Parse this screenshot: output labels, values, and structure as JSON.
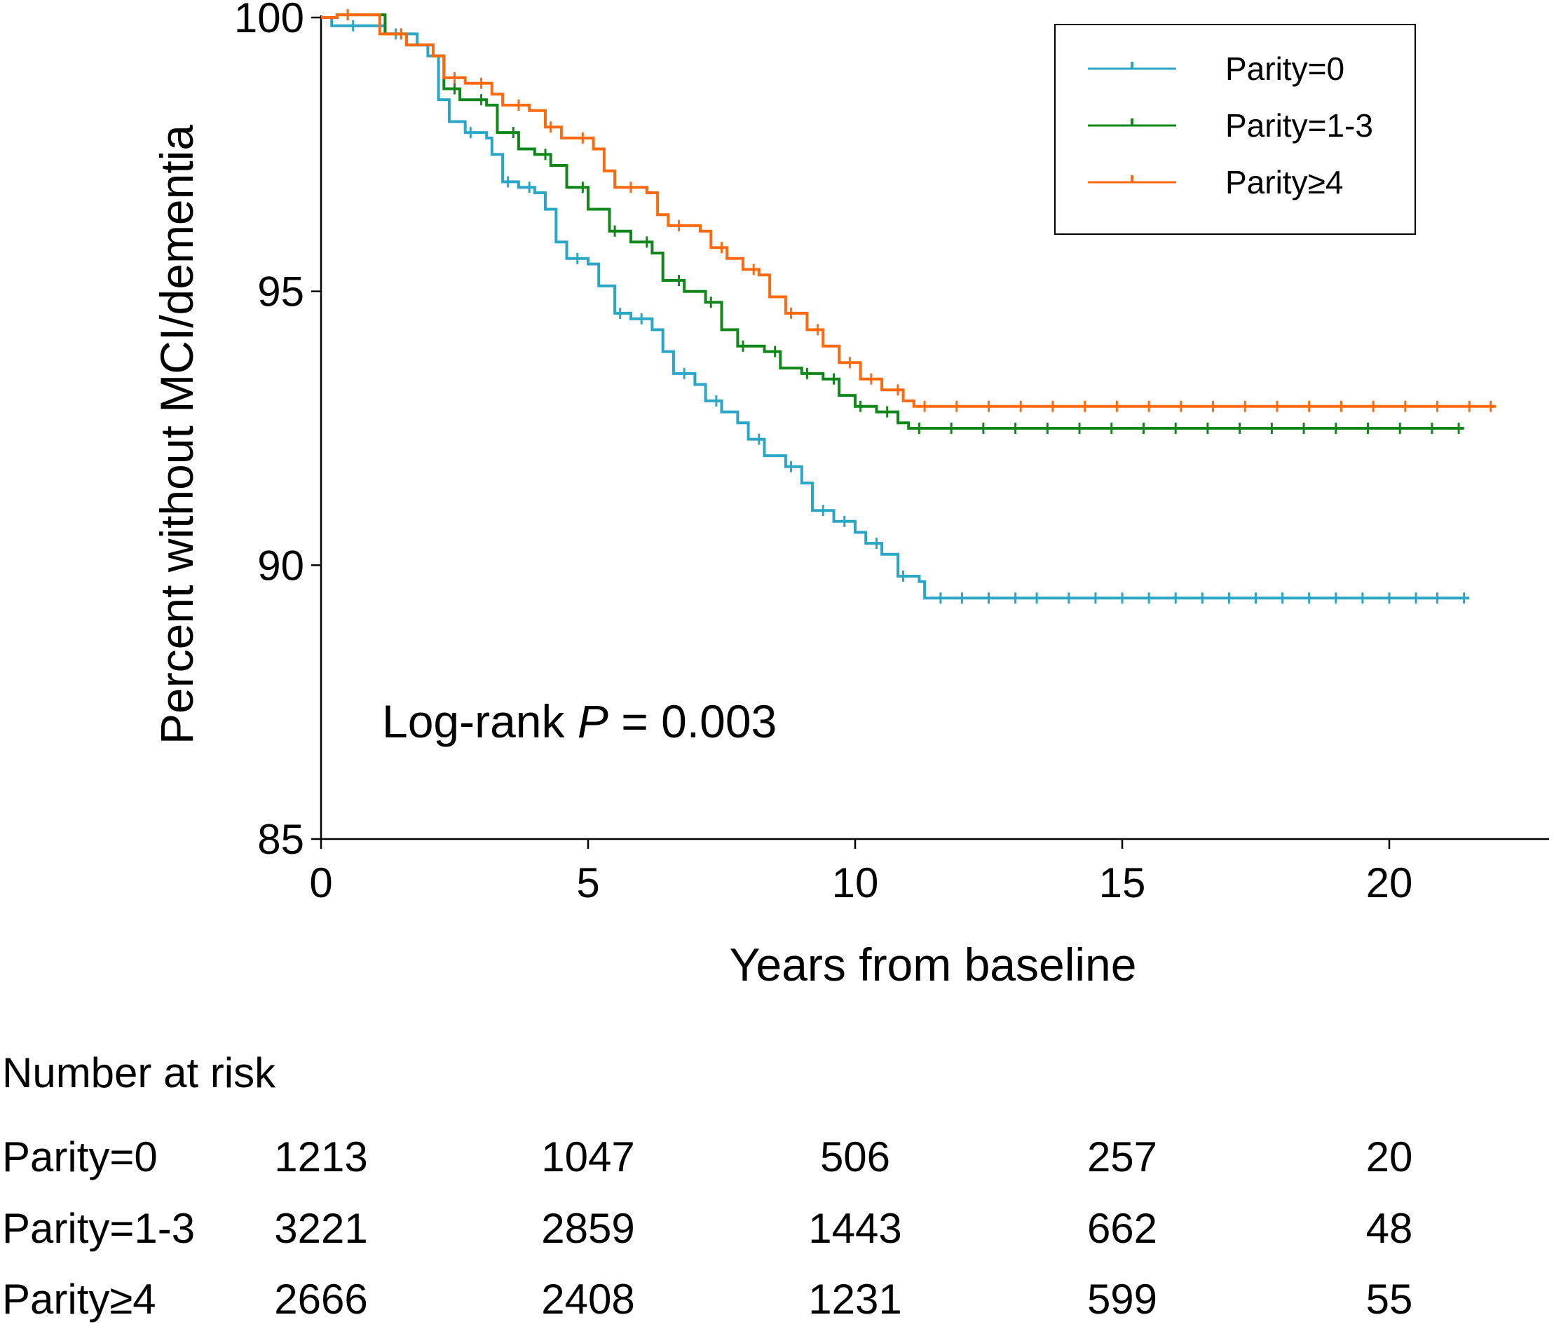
{
  "chart_data": {
    "type": "line",
    "subtype": "kaplan-meier",
    "xlabel": "Years from baseline",
    "ylabel": "Percent without MCI/dementia",
    "xlim": [
      0,
      23
    ],
    "ylim": [
      85,
      100
    ],
    "xticks": [
      0,
      5,
      10,
      15,
      20
    ],
    "yticks": [
      85,
      90,
      95,
      100
    ],
    "xtick_labels": [
      "0",
      "5",
      "10",
      "15",
      "20"
    ],
    "ytick_labels": [
      "85",
      "90",
      "95",
      "100"
    ],
    "legend_placement": "top-right",
    "annotation": {
      "prefix": "Log-rank ",
      "italic": "P",
      "suffix": " = 0.003"
    },
    "series": [
      {
        "name": "Parity=0",
        "color": "#2aa6c6",
        "points": [
          [
            0,
            100
          ],
          [
            0.2,
            99.85
          ],
          [
            1.0,
            99.85
          ],
          [
            1.2,
            99.7
          ],
          [
            1.8,
            99.5
          ],
          [
            2.0,
            99.3
          ],
          [
            2.2,
            98.5
          ],
          [
            2.4,
            98.1
          ],
          [
            2.7,
            97.9
          ],
          [
            3.1,
            97.8
          ],
          [
            3.2,
            97.5
          ],
          [
            3.4,
            97.0
          ],
          [
            3.7,
            96.9
          ],
          [
            4.0,
            96.8
          ],
          [
            4.2,
            96.5
          ],
          [
            4.4,
            95.9
          ],
          [
            4.6,
            95.6
          ],
          [
            5.0,
            95.5
          ],
          [
            5.2,
            95.1
          ],
          [
            5.5,
            94.6
          ],
          [
            5.8,
            94.5
          ],
          [
            6.2,
            94.3
          ],
          [
            6.4,
            93.9
          ],
          [
            6.6,
            93.5
          ],
          [
            7.0,
            93.3
          ],
          [
            7.2,
            93.0
          ],
          [
            7.5,
            92.8
          ],
          [
            7.8,
            92.6
          ],
          [
            8.0,
            92.3
          ],
          [
            8.3,
            92.0
          ],
          [
            8.7,
            91.8
          ],
          [
            9.0,
            91.5
          ],
          [
            9.2,
            91.0
          ],
          [
            9.6,
            90.8
          ],
          [
            10.0,
            90.6
          ],
          [
            10.2,
            90.4
          ],
          [
            10.5,
            90.2
          ],
          [
            10.8,
            89.8
          ],
          [
            11.2,
            89.7
          ],
          [
            11.3,
            89.4
          ],
          [
            21.5,
            89.4
          ]
        ],
        "censor_x": [
          0.6,
          1.4,
          2.8,
          3.5,
          3.9,
          4.8,
          5.6,
          6.0,
          6.8,
          7.4,
          8.2,
          8.8,
          9.4,
          9.8,
          10.4,
          10.9,
          11.6,
          12.0,
          12.5,
          13.0,
          13.4,
          14.0,
          14.5,
          15.0,
          15.5,
          16.0,
          16.5,
          17.0,
          17.5,
          18.0,
          18.5,
          19.0,
          19.5,
          20.0,
          20.5,
          20.9,
          21.4
        ]
      },
      {
        "name": "Parity=1-3",
        "color": "#11861a",
        "points": [
          [
            0,
            100
          ],
          [
            0.3,
            100.05
          ],
          [
            1.0,
            100.05
          ],
          [
            1.2,
            99.7
          ],
          [
            1.6,
            99.5
          ],
          [
            2.1,
            99.3
          ],
          [
            2.3,
            98.7
          ],
          [
            2.6,
            98.5
          ],
          [
            3.1,
            98.4
          ],
          [
            3.3,
            97.9
          ],
          [
            3.7,
            97.6
          ],
          [
            4.0,
            97.5
          ],
          [
            4.3,
            97.3
          ],
          [
            4.6,
            96.9
          ],
          [
            5.0,
            96.5
          ],
          [
            5.4,
            96.1
          ],
          [
            5.8,
            95.9
          ],
          [
            6.2,
            95.7
          ],
          [
            6.4,
            95.2
          ],
          [
            6.8,
            95.0
          ],
          [
            7.2,
            94.8
          ],
          [
            7.5,
            94.3
          ],
          [
            7.8,
            94.0
          ],
          [
            8.3,
            93.9
          ],
          [
            8.6,
            93.6
          ],
          [
            9.0,
            93.5
          ],
          [
            9.4,
            93.4
          ],
          [
            9.7,
            93.1
          ],
          [
            10.0,
            92.9
          ],
          [
            10.4,
            92.8
          ],
          [
            10.8,
            92.6
          ],
          [
            11.0,
            92.5
          ],
          [
            21.4,
            92.5
          ]
        ],
        "censor_x": [
          0.5,
          1.5,
          2.5,
          3.0,
          3.6,
          4.2,
          4.9,
          5.5,
          6.1,
          6.7,
          7.3,
          7.9,
          8.5,
          9.1,
          9.6,
          10.1,
          10.6,
          11.2,
          11.8,
          12.4,
          13.0,
          13.6,
          14.2,
          14.8,
          15.4,
          16.0,
          16.6,
          17.2,
          17.8,
          18.4,
          19.0,
          19.6,
          20.2,
          20.8,
          21.3
        ]
      },
      {
        "name": "Parity≥4",
        "color": "#ff6a10",
        "points": [
          [
            0,
            100
          ],
          [
            0.3,
            100.05
          ],
          [
            1.0,
            100.05
          ],
          [
            1.1,
            99.7
          ],
          [
            1.6,
            99.5
          ],
          [
            2.1,
            99.3
          ],
          [
            2.3,
            98.9
          ],
          [
            2.7,
            98.8
          ],
          [
            3.2,
            98.6
          ],
          [
            3.4,
            98.4
          ],
          [
            3.9,
            98.3
          ],
          [
            4.2,
            98.0
          ],
          [
            4.5,
            97.8
          ],
          [
            5.1,
            97.6
          ],
          [
            5.3,
            97.2
          ],
          [
            5.5,
            96.9
          ],
          [
            6.1,
            96.8
          ],
          [
            6.3,
            96.4
          ],
          [
            6.5,
            96.2
          ],
          [
            7.1,
            96.1
          ],
          [
            7.3,
            95.8
          ],
          [
            7.6,
            95.6
          ],
          [
            7.9,
            95.4
          ],
          [
            8.2,
            95.3
          ],
          [
            8.4,
            94.9
          ],
          [
            8.7,
            94.6
          ],
          [
            9.1,
            94.3
          ],
          [
            9.4,
            94.0
          ],
          [
            9.7,
            93.7
          ],
          [
            10.1,
            93.4
          ],
          [
            10.5,
            93.2
          ],
          [
            10.9,
            93.0
          ],
          [
            11.1,
            92.9
          ],
          [
            22.0,
            92.9
          ]
        ],
        "censor_x": [
          0.5,
          1.5,
          2.5,
          3.0,
          3.7,
          4.3,
          4.9,
          5.8,
          6.7,
          7.5,
          8.1,
          8.8,
          9.3,
          9.9,
          10.3,
          10.8,
          11.3,
          11.9,
          12.5,
          13.1,
          13.7,
          14.3,
          14.9,
          15.5,
          16.1,
          16.7,
          17.3,
          17.9,
          18.5,
          19.1,
          19.7,
          20.3,
          20.9,
          21.5,
          21.9
        ]
      }
    ],
    "risk_table": {
      "title": "Number at risk",
      "times": [
        0,
        5,
        10,
        15,
        20
      ],
      "rows": [
        {
          "label": "Parity=0",
          "values": [
            "1213",
            "1047",
            "506",
            "257",
            "20"
          ]
        },
        {
          "label": "Parity=1-3",
          "values": [
            "3221",
            "2859",
            "1443",
            "662",
            "48"
          ]
        },
        {
          "label": "Parity≥4",
          "values": [
            "2666",
            "2408",
            "1231",
            "599",
            "55"
          ]
        }
      ]
    }
  }
}
